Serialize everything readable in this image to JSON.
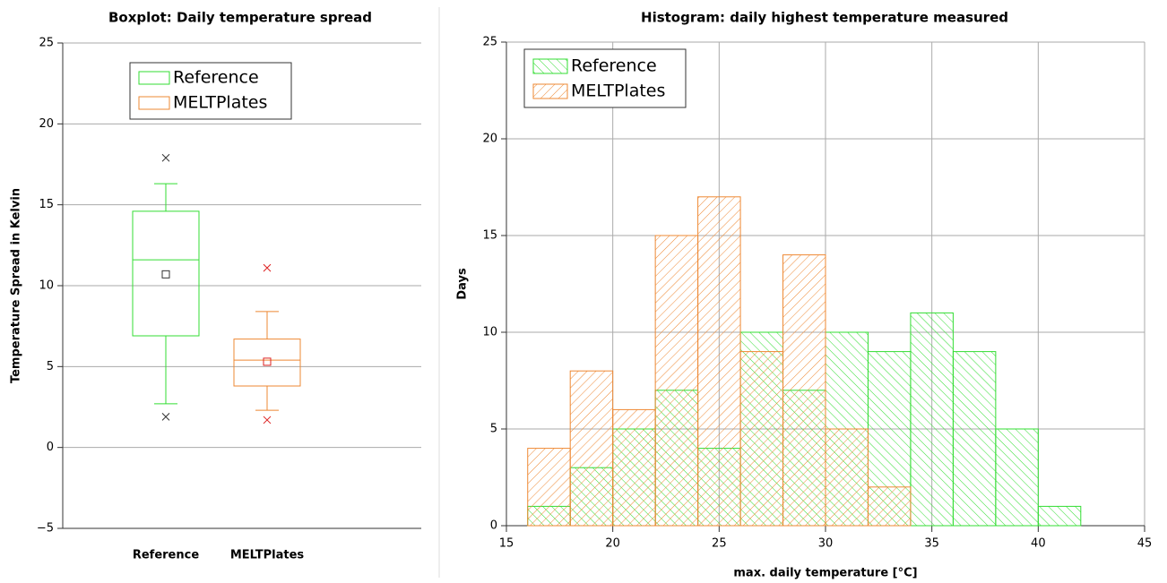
{
  "chart_data": [
    {
      "type": "boxplot",
      "title": "Boxplot: Daily temperature spread",
      "ylabel": "Temperature Spread in Kelvin",
      "categories": [
        "Reference",
        "MELTPlates"
      ],
      "series": [
        {
          "name": "Reference",
          "color": "#33dd33",
          "marker_color": "#333333",
          "whislo": 2.7,
          "q1": 6.9,
          "med": 11.6,
          "q3": 14.6,
          "whishi": 16.3,
          "mean": 10.7,
          "fliers": [
            1.9,
            17.9
          ]
        },
        {
          "name": "MELTPlates",
          "color": "#ee8833",
          "marker_color": "#dd2222",
          "whislo": 2.3,
          "q1": 3.8,
          "med": 5.4,
          "q3": 6.7,
          "whishi": 8.4,
          "mean": 5.3,
          "fliers": [
            1.7,
            11.1
          ]
        }
      ],
      "ylim": [
        -5,
        25
      ],
      "yticks": [
        {
          "value": -5,
          "label": "−5"
        },
        0,
        5,
        10,
        15,
        20,
        25
      ],
      "grid": true,
      "legend": "top"
    },
    {
      "type": "histogram",
      "title": "Histogram: daily highest temperature measured",
      "xlabel": "max. daily temperature [°C]",
      "ylabel": "Days",
      "bins": [
        16,
        18,
        20,
        22,
        24,
        26,
        28,
        30,
        32,
        34,
        36,
        38,
        40,
        42
      ],
      "series": [
        {
          "name": "Reference",
          "color": "#33dd33",
          "values": [
            1,
            3,
            5,
            7,
            4,
            10,
            7,
            10,
            9,
            11,
            9,
            5,
            1
          ]
        },
        {
          "name": "MELTPlates",
          "color": "#ee8833",
          "values": [
            4,
            8,
            6,
            15,
            17,
            9,
            14,
            5,
            2,
            0,
            0,
            0,
            0
          ]
        }
      ],
      "xlim": [
        15,
        45
      ],
      "xticks": [
        15,
        20,
        25,
        30,
        35,
        40,
        45
      ],
      "ylim": [
        0,
        25
      ],
      "yticks": [
        0,
        5,
        10,
        15,
        20,
        25
      ],
      "grid": true,
      "legend": "top-left"
    }
  ]
}
